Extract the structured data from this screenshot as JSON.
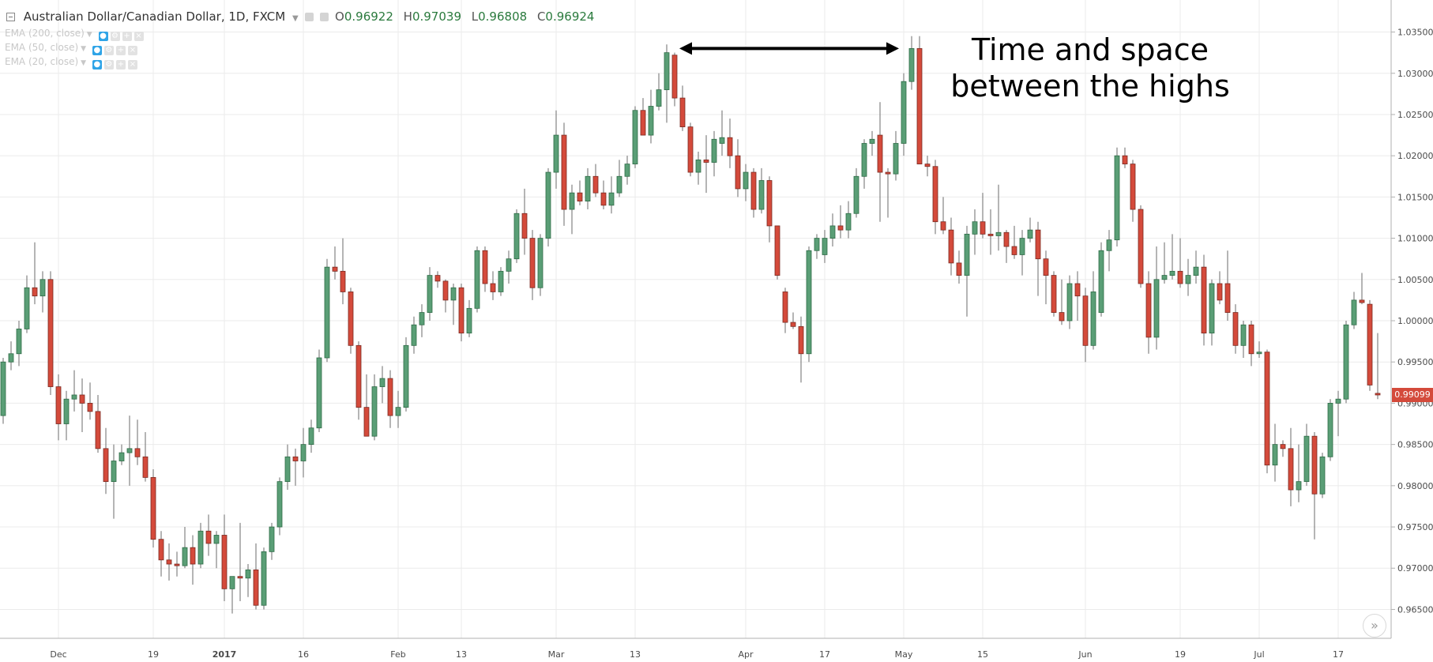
{
  "legend": {
    "symbol": "Australian Dollar/Canadian Dollar, 1D, FXCM",
    "open_key": "O",
    "open": "0.96922",
    "high_key": "H",
    "high": "0.97039",
    "low_key": "L",
    "low": "0.96808",
    "close_key": "C",
    "close": "0.96924"
  },
  "indicators": [
    {
      "label": "EMA (200, close)",
      "eye_icon": "eye-icon",
      "settings_icon": "gear-icon",
      "add_icon": "plus-icon",
      "remove_icon": "close-icon"
    },
    {
      "label": "EMA (50, close)",
      "eye_icon": "eye-icon",
      "settings_icon": "gear-icon",
      "add_icon": "plus-icon",
      "remove_icon": "close-icon"
    },
    {
      "label": "EMA (20, close)",
      "eye_icon": "eye-icon",
      "settings_icon": "gear-icon",
      "add_icon": "plus-icon",
      "remove_icon": "close-icon"
    }
  ],
  "annotation": {
    "line1": "Time and space",
    "line2": "between the highs"
  },
  "last_price": "0.99099",
  "scroll_button": "»",
  "colors": {
    "up": "#5a9e76",
    "down": "#d44a3b",
    "grid": "#ebebeb",
    "axis_text": "#4a4a4a",
    "arrow": "#000000"
  },
  "chart_data": {
    "type": "candlestick",
    "y_ticks": [
      "1.03500",
      "1.03000",
      "1.02500",
      "1.02000",
      "1.01500",
      "1.01000",
      "1.00500",
      "1.00000",
      "0.99500",
      "0.99000",
      "0.98500",
      "0.98000",
      "0.97500",
      "0.97000",
      "0.96500"
    ],
    "ylim": [
      0.9615,
      1.0385
    ],
    "x_tick_labels": [
      {
        "label": "Dec",
        "index": 7
      },
      {
        "label": "19",
        "index": 19
      },
      {
        "label": "2017",
        "index": 28
      },
      {
        "label": "16",
        "index": 38
      },
      {
        "label": "Feb",
        "index": 50
      },
      {
        "label": "13",
        "index": 58
      },
      {
        "label": "Mar",
        "index": 70
      },
      {
        "label": "13",
        "index": 80
      },
      {
        "label": "Apr",
        "index": 94
      },
      {
        "label": "17",
        "index": 104
      },
      {
        "label": "May",
        "index": 114
      },
      {
        "label": "15",
        "index": 124
      },
      {
        "label": "Jun",
        "index": 137
      },
      {
        "label": "19",
        "index": 149
      },
      {
        "label": "Jul",
        "index": 159
      },
      {
        "label": "17",
        "index": 169
      }
    ],
    "highs_arrow": {
      "from_index": 85,
      "to_index": 114,
      "price": 1.033
    },
    "candles": [
      {
        "o": 0.9885,
        "h": 0.9955,
        "l": 0.9875,
        "c": 0.995
      },
      {
        "o": 0.995,
        "h": 0.9975,
        "l": 0.994,
        "c": 0.996
      },
      {
        "o": 0.996,
        "h": 1.0,
        "l": 0.9945,
        "c": 0.999
      },
      {
        "o": 0.999,
        "h": 1.0055,
        "l": 0.9985,
        "c": 1.004
      },
      {
        "o": 1.004,
        "h": 1.0095,
        "l": 1.002,
        "c": 1.003
      },
      {
        "o": 1.003,
        "h": 1.006,
        "l": 1.001,
        "c": 1.005
      },
      {
        "o": 1.005,
        "h": 1.006,
        "l": 0.991,
        "c": 0.992
      },
      {
        "o": 0.992,
        "h": 0.9935,
        "l": 0.9855,
        "c": 0.9875
      },
      {
        "o": 0.9875,
        "h": 0.9915,
        "l": 0.9855,
        "c": 0.9905
      },
      {
        "o": 0.9905,
        "h": 0.994,
        "l": 0.989,
        "c": 0.991
      },
      {
        "o": 0.991,
        "h": 0.993,
        "l": 0.9865,
        "c": 0.99
      },
      {
        "o": 0.99,
        "h": 0.9925,
        "l": 0.988,
        "c": 0.989
      },
      {
        "o": 0.989,
        "h": 0.991,
        "l": 0.984,
        "c": 0.9845
      },
      {
        "o": 0.9845,
        "h": 0.987,
        "l": 0.979,
        "c": 0.9805
      },
      {
        "o": 0.9805,
        "h": 0.985,
        "l": 0.976,
        "c": 0.983
      },
      {
        "o": 0.983,
        "h": 0.985,
        "l": 0.9825,
        "c": 0.984
      },
      {
        "o": 0.984,
        "h": 0.9885,
        "l": 0.98,
        "c": 0.9845
      },
      {
        "o": 0.9845,
        "h": 0.988,
        "l": 0.9825,
        "c": 0.9835
      },
      {
        "o": 0.9835,
        "h": 0.9865,
        "l": 0.9805,
        "c": 0.981
      },
      {
        "o": 0.981,
        "h": 0.982,
        "l": 0.9725,
        "c": 0.9735
      },
      {
        "o": 0.9735,
        "h": 0.9745,
        "l": 0.969,
        "c": 0.971
      },
      {
        "o": 0.971,
        "h": 0.973,
        "l": 0.9685,
        "c": 0.9705
      },
      {
        "o": 0.9705,
        "h": 0.972,
        "l": 0.969,
        "c": 0.9703
      },
      {
        "o": 0.9703,
        "h": 0.975,
        "l": 0.97,
        "c": 0.9725
      },
      {
        "o": 0.9725,
        "h": 0.974,
        "l": 0.968,
        "c": 0.9705
      },
      {
        "o": 0.9705,
        "h": 0.9755,
        "l": 0.97,
        "c": 0.9745
      },
      {
        "o": 0.9745,
        "h": 0.9765,
        "l": 0.9715,
        "c": 0.973
      },
      {
        "o": 0.973,
        "h": 0.9745,
        "l": 0.97,
        "c": 0.974
      },
      {
        "o": 0.974,
        "h": 0.9765,
        "l": 0.966,
        "c": 0.9675
      },
      {
        "o": 0.9675,
        "h": 0.969,
        "l": 0.9645,
        "c": 0.969
      },
      {
        "o": 0.969,
        "h": 0.9755,
        "l": 0.966,
        "c": 0.9688
      },
      {
        "o": 0.9688,
        "h": 0.9705,
        "l": 0.9665,
        "c": 0.9698
      },
      {
        "o": 0.9698,
        "h": 0.973,
        "l": 0.965,
        "c": 0.9655
      },
      {
        "o": 0.9655,
        "h": 0.9725,
        "l": 0.965,
        "c": 0.972
      },
      {
        "o": 0.972,
        "h": 0.9755,
        "l": 0.971,
        "c": 0.975
      },
      {
        "o": 0.975,
        "h": 0.981,
        "l": 0.974,
        "c": 0.9805
      },
      {
        "o": 0.9805,
        "h": 0.985,
        "l": 0.9795,
        "c": 0.9835
      },
      {
        "o": 0.9835,
        "h": 0.9845,
        "l": 0.98,
        "c": 0.983
      },
      {
        "o": 0.983,
        "h": 0.987,
        "l": 0.981,
        "c": 0.985
      },
      {
        "o": 0.985,
        "h": 0.988,
        "l": 0.984,
        "c": 0.987
      },
      {
        "o": 0.987,
        "h": 0.9965,
        "l": 0.9865,
        "c": 0.9955
      },
      {
        "o": 0.9955,
        "h": 1.0075,
        "l": 0.995,
        "c": 1.0065
      },
      {
        "o": 1.0065,
        "h": 1.009,
        "l": 1.005,
        "c": 1.006
      },
      {
        "o": 1.006,
        "h": 1.01,
        "l": 1.002,
        "c": 1.0035
      },
      {
        "o": 1.0035,
        "h": 1.004,
        "l": 0.996,
        "c": 0.997
      },
      {
        "o": 0.997,
        "h": 0.9975,
        "l": 0.988,
        "c": 0.9895
      },
      {
        "o": 0.9895,
        "h": 0.9935,
        "l": 0.986,
        "c": 0.986
      },
      {
        "o": 0.986,
        "h": 0.9935,
        "l": 0.9855,
        "c": 0.992
      },
      {
        "o": 0.992,
        "h": 0.9945,
        "l": 0.99,
        "c": 0.993
      },
      {
        "o": 0.993,
        "h": 0.994,
        "l": 0.987,
        "c": 0.9885
      },
      {
        "o": 0.9885,
        "h": 0.9915,
        "l": 0.987,
        "c": 0.9895
      },
      {
        "o": 0.9895,
        "h": 0.998,
        "l": 0.989,
        "c": 0.997
      },
      {
        "o": 0.997,
        "h": 1.0005,
        "l": 0.996,
        "c": 0.9995
      },
      {
        "o": 0.9995,
        "h": 1.002,
        "l": 0.998,
        "c": 1.001
      },
      {
        "o": 1.001,
        "h": 1.0065,
        "l": 1.0,
        "c": 1.0055
      },
      {
        "o": 1.0055,
        "h": 1.006,
        "l": 1.004,
        "c": 1.0048
      },
      {
        "o": 1.0048,
        "h": 1.005,
        "l": 1.001,
        "c": 1.0025
      },
      {
        "o": 1.0025,
        "h": 1.0045,
        "l": 0.9995,
        "c": 1.004
      },
      {
        "o": 1.004,
        "h": 1.0045,
        "l": 0.9975,
        "c": 0.9985
      },
      {
        "o": 0.9985,
        "h": 1.0025,
        "l": 0.998,
        "c": 1.0015
      },
      {
        "o": 1.0015,
        "h": 1.009,
        "l": 1.001,
        "c": 1.0085
      },
      {
        "o": 1.0085,
        "h": 1.009,
        "l": 1.0035,
        "c": 1.0045
      },
      {
        "o": 1.0045,
        "h": 1.006,
        "l": 1.0025,
        "c": 1.0035
      },
      {
        "o": 1.0035,
        "h": 1.0065,
        "l": 1.003,
        "c": 1.006
      },
      {
        "o": 1.006,
        "h": 1.0085,
        "l": 1.0045,
        "c": 1.0075
      },
      {
        "o": 1.0075,
        "h": 1.0135,
        "l": 1.007,
        "c": 1.013
      },
      {
        "o": 1.013,
        "h": 1.016,
        "l": 1.008,
        "c": 1.01
      },
      {
        "o": 1.01,
        "h": 1.011,
        "l": 1.0025,
        "c": 1.004
      },
      {
        "o": 1.004,
        "h": 1.0105,
        "l": 1.003,
        "c": 1.01
      },
      {
        "o": 1.01,
        "h": 1.0185,
        "l": 1.009,
        "c": 1.018
      },
      {
        "o": 1.018,
        "h": 1.0255,
        "l": 1.016,
        "c": 1.0225
      },
      {
        "o": 1.0225,
        "h": 1.024,
        "l": 1.0115,
        "c": 1.0135
      },
      {
        "o": 1.0135,
        "h": 1.0165,
        "l": 1.0105,
        "c": 1.0155
      },
      {
        "o": 1.0155,
        "h": 1.017,
        "l": 1.014,
        "c": 1.0145
      },
      {
        "o": 1.0145,
        "h": 1.0185,
        "l": 1.0135,
        "c": 1.0175
      },
      {
        "o": 1.0175,
        "h": 1.019,
        "l": 1.015,
        "c": 1.0155
      },
      {
        "o": 1.0155,
        "h": 1.017,
        "l": 1.0135,
        "c": 1.014
      },
      {
        "o": 1.014,
        "h": 1.0175,
        "l": 1.013,
        "c": 1.0155
      },
      {
        "o": 1.0155,
        "h": 1.0195,
        "l": 1.015,
        "c": 1.0175
      },
      {
        "o": 1.0175,
        "h": 1.02,
        "l": 1.0165,
        "c": 1.019
      },
      {
        "o": 1.019,
        "h": 1.026,
        "l": 1.0185,
        "c": 1.0255
      },
      {
        "o": 1.0255,
        "h": 1.027,
        "l": 1.0225,
        "c": 1.0225
      },
      {
        "o": 1.0225,
        "h": 1.028,
        "l": 1.0215,
        "c": 1.026
      },
      {
        "o": 1.026,
        "h": 1.03,
        "l": 1.0255,
        "c": 1.028
      },
      {
        "o": 1.028,
        "h": 1.0335,
        "l": 1.024,
        "c": 1.0325
      },
      {
        "o": 1.0322,
        "h": 1.0325,
        "l": 1.026,
        "c": 1.027
      },
      {
        "o": 1.027,
        "h": 1.0285,
        "l": 1.023,
        "c": 1.0235
      },
      {
        "o": 1.0235,
        "h": 1.024,
        "l": 1.0175,
        "c": 1.018
      },
      {
        "o": 1.018,
        "h": 1.0205,
        "l": 1.0165,
        "c": 1.0195
      },
      {
        "o": 1.0195,
        "h": 1.0225,
        "l": 1.0155,
        "c": 1.0192
      },
      {
        "o": 1.0192,
        "h": 1.023,
        "l": 1.0175,
        "c": 1.022
      },
      {
        "o": 1.0215,
        "h": 1.0255,
        "l": 1.02,
        "c": 1.0222
      },
      {
        "o": 1.0222,
        "h": 1.0245,
        "l": 1.0185,
        "c": 1.02
      },
      {
        "o": 1.02,
        "h": 1.022,
        "l": 1.015,
        "c": 1.016
      },
      {
        "o": 1.016,
        "h": 1.019,
        "l": 1.0145,
        "c": 1.018
      },
      {
        "o": 1.018,
        "h": 1.0185,
        "l": 1.0125,
        "c": 1.0135
      },
      {
        "o": 1.0135,
        "h": 1.0185,
        "l": 1.013,
        "c": 1.017
      },
      {
        "o": 1.017,
        "h": 1.0175,
        "l": 1.0095,
        "c": 1.0115
      },
      {
        "o": 1.0115,
        "h": 1.0115,
        "l": 1.005,
        "c": 1.0055
      },
      {
        "o": 1.0035,
        "h": 1.004,
        "l": 0.9985,
        "c": 0.9998
      },
      {
        "o": 0.9998,
        "h": 1.001,
        "l": 0.999,
        "c": 0.9993
      },
      {
        "o": 0.9993,
        "h": 1.0005,
        "l": 0.9925,
        "c": 0.996
      },
      {
        "o": 0.996,
        "h": 1.009,
        "l": 0.995,
        "c": 1.0085
      },
      {
        "o": 1.0085,
        "h": 1.0105,
        "l": 1.0075,
        "c": 1.01
      },
      {
        "o": 1.008,
        "h": 1.011,
        "l": 1.007,
        "c": 1.01
      },
      {
        "o": 1.01,
        "h": 1.013,
        "l": 1.009,
        "c": 1.0115
      },
      {
        "o": 1.0115,
        "h": 1.014,
        "l": 1.01,
        "c": 1.011
      },
      {
        "o": 1.011,
        "h": 1.0145,
        "l": 1.01,
        "c": 1.013
      },
      {
        "o": 1.013,
        "h": 1.0185,
        "l": 1.0125,
        "c": 1.0175
      },
      {
        "o": 1.0175,
        "h": 1.022,
        "l": 1.016,
        "c": 1.0215
      },
      {
        "o": 1.0215,
        "h": 1.023,
        "l": 1.02,
        "c": 1.022
      },
      {
        "o": 1.0225,
        "h": 1.0265,
        "l": 1.012,
        "c": 1.018
      },
      {
        "o": 1.018,
        "h": 1.0185,
        "l": 1.0125,
        "c": 1.0178
      },
      {
        "o": 1.0178,
        "h": 1.023,
        "l": 1.017,
        "c": 1.0215
      },
      {
        "o": 1.0215,
        "h": 1.03,
        "l": 1.02,
        "c": 1.029
      },
      {
        "o": 1.029,
        "h": 1.0345,
        "l": 1.028,
        "c": 1.033
      },
      {
        "o": 1.033,
        "h": 1.0345,
        "l": 1.019,
        "c": 1.019
      },
      {
        "o": 1.019,
        "h": 1.02,
        "l": 1.0175,
        "c": 1.0187
      },
      {
        "o": 1.0187,
        "h": 1.0195,
        "l": 1.0105,
        "c": 1.012
      },
      {
        "o": 1.012,
        "h": 1.015,
        "l": 1.0105,
        "c": 1.011
      },
      {
        "o": 1.011,
        "h": 1.0125,
        "l": 1.0055,
        "c": 1.007
      },
      {
        "o": 1.007,
        "h": 1.0085,
        "l": 1.0045,
        "c": 1.0055
      },
      {
        "o": 1.0055,
        "h": 1.0115,
        "l": 1.0005,
        "c": 1.0105
      },
      {
        "o": 1.0105,
        "h": 1.0135,
        "l": 1.008,
        "c": 1.012
      },
      {
        "o": 1.012,
        "h": 1.0155,
        "l": 1.01,
        "c": 1.0105
      },
      {
        "o": 1.0105,
        "h": 1.0135,
        "l": 1.008,
        "c": 1.0103
      },
      {
        "o": 1.0103,
        "h": 1.0165,
        "l": 1.0085,
        "c": 1.0107
      },
      {
        "o": 1.0107,
        "h": 1.011,
        "l": 1.007,
        "c": 1.009
      },
      {
        "o": 1.009,
        "h": 1.0115,
        "l": 1.0075,
        "c": 1.008
      },
      {
        "o": 1.008,
        "h": 1.011,
        "l": 1.0055,
        "c": 1.01
      },
      {
        "o": 1.01,
        "h": 1.0125,
        "l": 1.0095,
        "c": 1.011
      },
      {
        "o": 1.011,
        "h": 1.012,
        "l": 1.003,
        "c": 1.0075
      },
      {
        "o": 1.0075,
        "h": 1.0085,
        "l": 1.002,
        "c": 1.0055
      },
      {
        "o": 1.0055,
        "h": 1.006,
        "l": 1.0005,
        "c": 1.001
      },
      {
        "o": 1.001,
        "h": 1.005,
        "l": 0.9995,
        "c": 1.0
      },
      {
        "o": 1.0,
        "h": 1.0055,
        "l": 0.999,
        "c": 1.0045
      },
      {
        "o": 1.0045,
        "h": 1.006,
        "l": 1.0,
        "c": 1.003
      },
      {
        "o": 1.003,
        "h": 1.004,
        "l": 0.995,
        "c": 0.997
      },
      {
        "o": 0.997,
        "h": 1.006,
        "l": 0.9965,
        "c": 1.0035
      },
      {
        "o": 1.001,
        "h": 1.0095,
        "l": 1.0005,
        "c": 1.0085
      },
      {
        "o": 1.0085,
        "h": 1.011,
        "l": 1.006,
        "c": 1.0098
      },
      {
        "o": 1.0098,
        "h": 1.021,
        "l": 1.009,
        "c": 1.02
      },
      {
        "o": 1.02,
        "h": 1.021,
        "l": 1.0185,
        "c": 1.019
      },
      {
        "o": 1.019,
        "h": 1.0195,
        "l": 1.012,
        "c": 1.0135
      },
      {
        "o": 1.0135,
        "h": 1.014,
        "l": 1.004,
        "c": 1.0045
      },
      {
        "o": 1.0045,
        "h": 1.006,
        "l": 0.996,
        "c": 0.998
      },
      {
        "o": 0.998,
        "h": 1.009,
        "l": 0.9965,
        "c": 1.005
      },
      {
        "o": 1.005,
        "h": 1.0095,
        "l": 1.0045,
        "c": 1.0055
      },
      {
        "o": 1.0055,
        "h": 1.0105,
        "l": 1.005,
        "c": 1.006
      },
      {
        "o": 1.006,
        "h": 1.01,
        "l": 1.004,
        "c": 1.0045
      },
      {
        "o": 1.0045,
        "h": 1.0075,
        "l": 1.003,
        "c": 1.0055
      },
      {
        "o": 1.0055,
        "h": 1.0085,
        "l": 1.0045,
        "c": 1.0065
      },
      {
        "o": 1.0065,
        "h": 1.008,
        "l": 0.997,
        "c": 0.9985
      },
      {
        "o": 0.9985,
        "h": 1.005,
        "l": 0.997,
        "c": 1.0045
      },
      {
        "o": 1.0045,
        "h": 1.006,
        "l": 1.002,
        "c": 1.0025
      },
      {
        "o": 1.0045,
        "h": 1.0085,
        "l": 1.0,
        "c": 1.001
      },
      {
        "o": 1.001,
        "h": 1.002,
        "l": 0.996,
        "c": 0.997
      },
      {
        "o": 0.997,
        "h": 1.0,
        "l": 0.9955,
        "c": 0.9995
      },
      {
        "o": 0.9995,
        "h": 1.0,
        "l": 0.9945,
        "c": 0.996
      },
      {
        "o": 0.996,
        "h": 0.9975,
        "l": 0.9955,
        "c": 0.9962
      },
      {
        "o": 0.9962,
        "h": 0.9965,
        "l": 0.9815,
        "c": 0.9825
      },
      {
        "o": 0.9825,
        "h": 0.9875,
        "l": 0.9805,
        "c": 0.985
      },
      {
        "o": 0.985,
        "h": 0.9855,
        "l": 0.9835,
        "c": 0.9845
      },
      {
        "o": 0.9845,
        "h": 0.987,
        "l": 0.9775,
        "c": 0.9795
      },
      {
        "o": 0.9795,
        "h": 0.985,
        "l": 0.978,
        "c": 0.9805
      },
      {
        "o": 0.9805,
        "h": 0.9875,
        "l": 0.98,
        "c": 0.986
      },
      {
        "o": 0.986,
        "h": 0.9865,
        "l": 0.9735,
        "c": 0.979
      },
      {
        "o": 0.979,
        "h": 0.984,
        "l": 0.9785,
        "c": 0.9835
      },
      {
        "o": 0.9835,
        "h": 0.9905,
        "l": 0.983,
        "c": 0.99
      },
      {
        "o": 0.99,
        "h": 0.9915,
        "l": 0.986,
        "c": 0.9905
      },
      {
        "o": 0.9905,
        "h": 1.0,
        "l": 0.99,
        "c": 0.9995
      },
      {
        "o": 0.9995,
        "h": 1.0035,
        "l": 0.999,
        "c": 1.0025
      },
      {
        "o": 1.0025,
        "h": 1.0058,
        "l": 1.002,
        "c": 1.0022
      },
      {
        "o": 1.002,
        "h": 1.0025,
        "l": 0.9915,
        "c": 0.9922
      },
      {
        "o": 0.9912,
        "h": 0.9985,
        "l": 0.9905,
        "c": 0.991
      }
    ]
  }
}
